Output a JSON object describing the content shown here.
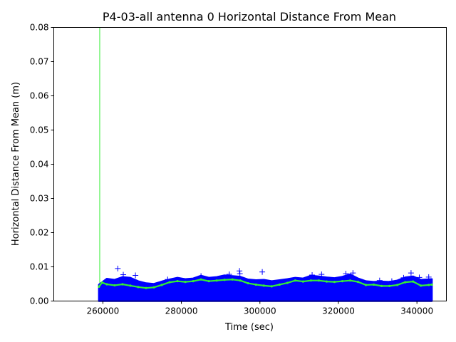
{
  "chart_data": {
    "type": "scatter",
    "title": "P4-03-all antenna 0 Horizontal Distance From Mean",
    "xlabel": "Time (sec)",
    "ylabel": "Horizontal Distance From Mean (m)",
    "xlim": [
      247500,
      347500
    ],
    "ylim": [
      0,
      0.08
    ],
    "xticks": [
      {
        "value": 260000,
        "label": "260000"
      },
      {
        "value": 280000,
        "label": "280000"
      },
      {
        "value": 300000,
        "label": "300000"
      },
      {
        "value": 320000,
        "label": "320000"
      },
      {
        "value": 340000,
        "label": "340000"
      }
    ],
    "yticks": [
      {
        "value": 0.0,
        "label": "0.00"
      },
      {
        "value": 0.01,
        "label": "0.01"
      },
      {
        "value": 0.02,
        "label": "0.02"
      },
      {
        "value": 0.03,
        "label": "0.03"
      },
      {
        "value": 0.04,
        "label": "0.04"
      },
      {
        "value": 0.05,
        "label": "0.05"
      },
      {
        "value": 0.06,
        "label": "0.06"
      },
      {
        "value": 0.07,
        "label": "0.07"
      },
      {
        "value": 0.08,
        "label": "0.08"
      }
    ],
    "grid": false,
    "colors": {
      "points": "#0000ff",
      "mean_line": "#33ee33",
      "vertical_line": "#33ee33"
    },
    "vertical_line_x": 259200,
    "series": [
      {
        "marker": "plus",
        "color": "#0000ff",
        "envelope_top": [
          [
            259000,
            0.0048
          ],
          [
            261000,
            0.0065
          ],
          [
            263000,
            0.0062
          ],
          [
            265000,
            0.007
          ],
          [
            267000,
            0.0068
          ],
          [
            269000,
            0.0058
          ],
          [
            271000,
            0.0052
          ],
          [
            273000,
            0.005
          ],
          [
            275000,
            0.0057
          ],
          [
            277000,
            0.0063
          ],
          [
            279000,
            0.0068
          ],
          [
            281000,
            0.0064
          ],
          [
            283000,
            0.0066
          ],
          [
            285000,
            0.0074
          ],
          [
            287000,
            0.0068
          ],
          [
            289000,
            0.007
          ],
          [
            291000,
            0.0075
          ],
          [
            293000,
            0.0073
          ],
          [
            295000,
            0.0071
          ],
          [
            297000,
            0.0063
          ],
          [
            299000,
            0.0061
          ],
          [
            301000,
            0.0062
          ],
          [
            303000,
            0.0058
          ],
          [
            305000,
            0.0061
          ],
          [
            307000,
            0.0064
          ],
          [
            309000,
            0.0068
          ],
          [
            311000,
            0.0066
          ],
          [
            313000,
            0.0074
          ],
          [
            315000,
            0.0072
          ],
          [
            317000,
            0.0069
          ],
          [
            319000,
            0.0067
          ],
          [
            321000,
            0.0071
          ],
          [
            323000,
            0.0078
          ],
          [
            325000,
            0.0066
          ],
          [
            327000,
            0.0058
          ],
          [
            329000,
            0.0056
          ],
          [
            331000,
            0.0057
          ],
          [
            333000,
            0.0056
          ],
          [
            335000,
            0.006
          ],
          [
            337000,
            0.0069
          ],
          [
            339000,
            0.0072
          ],
          [
            341000,
            0.0062
          ],
          [
            343800,
            0.0064
          ]
        ],
        "outliers": [
          [
            263800,
            0.0095
          ],
          [
            265200,
            0.0077
          ],
          [
            268300,
            0.0075
          ],
          [
            276500,
            0.0063
          ],
          [
            285000,
            0.0073
          ],
          [
            292200,
            0.0078
          ],
          [
            294800,
            0.0088
          ],
          [
            294900,
            0.008
          ],
          [
            300600,
            0.0085
          ],
          [
            313300,
            0.0076
          ],
          [
            315700,
            0.0078
          ],
          [
            321900,
            0.008
          ],
          [
            323700,
            0.0082
          ],
          [
            330500,
            0.006
          ],
          [
            333600,
            0.0058
          ],
          [
            336600,
            0.0068
          ],
          [
            338500,
            0.0082
          ],
          [
            340600,
            0.0069
          ],
          [
            343000,
            0.007
          ]
        ]
      },
      {
        "marker": "dot",
        "color": "#33ee33",
        "points": [
          [
            259000,
            0.0042
          ],
          [
            259800,
            0.0054
          ],
          [
            261000,
            0.0049
          ],
          [
            263000,
            0.0046
          ],
          [
            265000,
            0.0049
          ],
          [
            267000,
            0.0045
          ],
          [
            269000,
            0.0041
          ],
          [
            271000,
            0.0038
          ],
          [
            273000,
            0.004
          ],
          [
            275000,
            0.0047
          ],
          [
            277000,
            0.0055
          ],
          [
            279000,
            0.0058
          ],
          [
            281000,
            0.0056
          ],
          [
            283000,
            0.0058
          ],
          [
            285000,
            0.0063
          ],
          [
            287000,
            0.0058
          ],
          [
            289000,
            0.006
          ],
          [
            291000,
            0.0062
          ],
          [
            293000,
            0.0063
          ],
          [
            295000,
            0.006
          ],
          [
            297000,
            0.0052
          ],
          [
            299000,
            0.0048
          ],
          [
            301000,
            0.0045
          ],
          [
            303000,
            0.0043
          ],
          [
            305000,
            0.0048
          ],
          [
            307000,
            0.0053
          ],
          [
            309000,
            0.006
          ],
          [
            311000,
            0.0057
          ],
          [
            313000,
            0.006
          ],
          [
            315000,
            0.006
          ],
          [
            317000,
            0.0057
          ],
          [
            319000,
            0.0056
          ],
          [
            321000,
            0.0058
          ],
          [
            323000,
            0.006
          ],
          [
            325000,
            0.0056
          ],
          [
            327000,
            0.0047
          ],
          [
            329000,
            0.0048
          ],
          [
            331000,
            0.0044
          ],
          [
            333000,
            0.0044
          ],
          [
            335000,
            0.0047
          ],
          [
            337000,
            0.0055
          ],
          [
            339000,
            0.0057
          ],
          [
            341000,
            0.0045
          ],
          [
            343000,
            0.0047
          ],
          [
            343800,
            0.0048
          ]
        ]
      }
    ]
  }
}
